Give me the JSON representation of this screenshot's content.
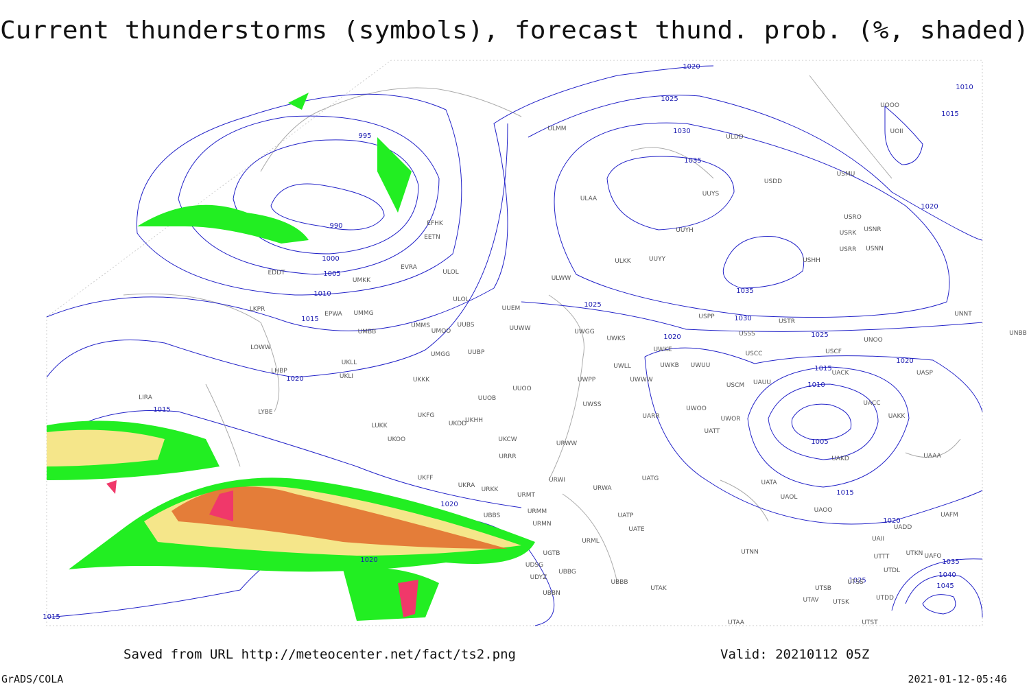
{
  "title": "Current thunderstorms (symbols), forecast thund. prob. (%, shaded)",
  "footer": {
    "saved": "Saved from URL http://meteocenter.net/fact/ts2.png",
    "valid": "Valid: 20210112 05Z",
    "credit": "GrADS/COLA",
    "timestamp": "2021-01-12-05:46"
  },
  "isobar_labels": [
    995,
    990,
    1000,
    1005,
    1010,
    1015,
    1020,
    1015,
    1020,
    1020,
    1015,
    1025,
    1020,
    1025,
    1030,
    1035,
    1035,
    1030,
    1025,
    1020,
    1015,
    1010,
    1005,
    1015,
    1020,
    1025,
    1035,
    1040,
    1045,
    1020,
    1010,
    1015,
    1020
  ],
  "stations": [
    "ULMM",
    "ULDD",
    "ULAA",
    "UUYS",
    "UUYH",
    "USDD",
    "USMU",
    "UOOO",
    "UOII",
    "USRO",
    "USNR",
    "USRK",
    "USRR",
    "USNN",
    "USHH",
    "ULKK",
    "UUYY",
    "ULWW",
    "EFHK",
    "EETN",
    "EVRA",
    "ULOL",
    "ULOL",
    "UUEM",
    "EDDT",
    "UMKK",
    "EPWA",
    "UMMG",
    "LKPR",
    "UMMS",
    "UMOO",
    "UUBS",
    "UUWW",
    "UMBB",
    "UWGG",
    "UWKS",
    "USPP",
    "USTR",
    "USSS",
    "UNNT",
    "UNOO",
    "UNBB",
    "LOWW",
    "USCC",
    "UWKE",
    "UWKB",
    "UWUU",
    "USCF",
    "UACK",
    "UASP",
    "UUBP",
    "UMGG",
    "UKLL",
    "UKLI",
    "LHBP",
    "UWLL",
    "UWWW",
    "UWPP",
    "USCM",
    "UAUU",
    "UKKK",
    "UUOO",
    "UUOB",
    "LIRA",
    "LYBE",
    "UWSS",
    "UACC",
    "UAKK",
    "UARR",
    "UWOO",
    "UWOR",
    "UKHH",
    "UKFG",
    "UKDD",
    "LUKK",
    "UATT",
    "URWW",
    "UKOO",
    "UKCW",
    "URRR",
    "UAAA",
    "UAKD",
    "UKFF",
    "UKRA",
    "URKK",
    "URWI",
    "UATG",
    "URMT",
    "URWA",
    "UATA",
    "UAOL",
    "UAOO",
    "URMM",
    "UBBS",
    "UATP",
    "URMN",
    "UATE",
    "UAFM",
    "UADD",
    "UAII",
    "UTTT",
    "UTKN",
    "UAFO",
    "URML",
    "UTNN",
    "UGTB",
    "UDSG",
    "UTDL",
    "UBBG",
    "UDYZ",
    "UBBB",
    "UTAK",
    "UTSB",
    "UTSS",
    "UBBN",
    "UTAV",
    "UTSK",
    "UTDD",
    "UTAA",
    "UTST"
  ]
}
